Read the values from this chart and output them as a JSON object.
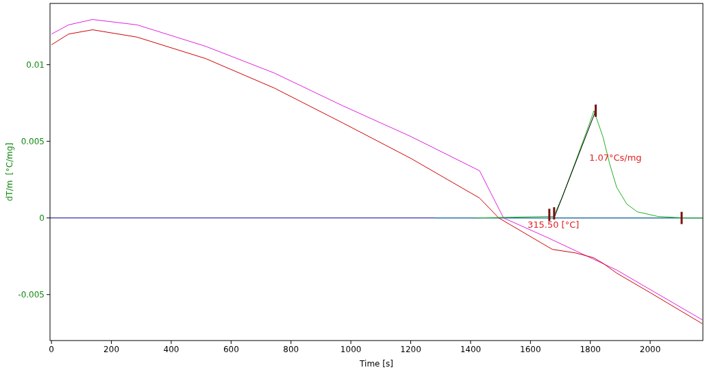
{
  "chart_data": {
    "type": "line",
    "xlabel": "Time [s]",
    "ylabel": "dT/m  [°C/mg]",
    "xlim": [
      -5,
      2176
    ],
    "ylim": [
      -0.008,
      0.014
    ],
    "xticks": [
      0,
      200,
      400,
      600,
      800,
      1000,
      1200,
      1400,
      1600,
      1800,
      2000
    ],
    "yticks": [
      -0.005,
      0,
      0.005,
      0.01
    ],
    "grid": false,
    "series": [
      {
        "color": "#0000a0",
        "x": [
          -5,
          2176
        ],
        "values": [
          0,
          0
        ]
      },
      {
        "color": "#1a8aa0",
        "x": [
          1280,
          2176
        ],
        "values": [
          0,
          0
        ]
      },
      {
        "color": "#e020e0",
        "x": [
          0,
          57,
          137,
          286,
          515,
          744,
          973,
          1201,
          1430,
          1510,
          1659,
          1888,
          2174
        ],
        "values": [
          0.012,
          0.0126,
          0.01295,
          0.0126,
          0.0112,
          0.00946,
          0.00732,
          0.00531,
          0.00308,
          0,
          -0.0013,
          -0.0034,
          -0.00665
        ]
      },
      {
        "color": "#d00000",
        "x": [
          0,
          57,
          137,
          286,
          515,
          744,
          973,
          1201,
          1430,
          1494,
          1673,
          1750,
          1810,
          1842,
          1888,
          2002,
          2174
        ],
        "values": [
          0.0113,
          0.012,
          0.01228,
          0.0118,
          0.0104,
          0.00848,
          0.0062,
          0.00388,
          0.0013,
          0,
          -0.00205,
          -0.00228,
          -0.00259,
          -0.00295,
          -0.0036,
          -0.0049,
          -0.0069
        ]
      },
      {
        "color": "#20b020",
        "x": [
          1420,
          1663,
          1677,
          1705,
          1751,
          1796,
          1812,
          1842,
          1865,
          1888,
          1922,
          1957,
          2025,
          2117,
          2174
        ],
        "values": [
          0,
          0.0001,
          0.0001,
          0.0013,
          0.0037,
          0.0061,
          0.007,
          0.0053,
          0.0035,
          0.002,
          0.0009,
          0.0004,
          0.0001,
          0,
          0
        ]
      },
      {
        "color": "#000000",
        "x": [
          1679,
          1818
        ],
        "values": [
          0,
          0.007
        ]
      },
      {
        "type": "bar",
        "color": "#7a1010",
        "x": [
          1663,
          1679,
          1818,
          2105
        ],
        "base": [
          -0.0002,
          -0.0001,
          0.0066,
          -0.0004
        ],
        "values": [
          0.0008,
          0.0008,
          0.0008,
          0.0008
        ]
      }
    ],
    "annotations": [
      "1.07°Cs/mg",
      "315.50 [°C]"
    ]
  }
}
